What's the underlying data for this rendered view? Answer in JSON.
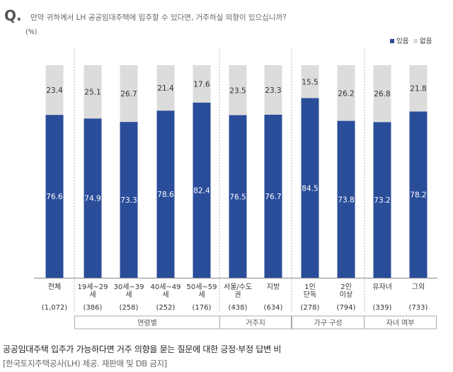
{
  "chart_data": {
    "type": "bar",
    "title_prefix": "Q.",
    "title": "만약 귀하께서 LH 공공임대주택에 입주할 수 있다면, 거주하실 의향이 있으십니까?",
    "unit": "(%)",
    "categories": [
      "전체",
      "19세~29 세",
      "30세~39 세",
      "40세~49 세",
      "50세~59 세",
      "서울/수도 권",
      "지방",
      "1인 단독",
      "2인 이상",
      "유자녀",
      "그외"
    ],
    "sample_sizes": [
      "(1,072)",
      "(386)",
      "(258)",
      "(252)",
      "(176)",
      "(438)",
      "(634)",
      "(278)",
      "(794)",
      "(339)",
      "(733)"
    ],
    "series": [
      {
        "name": "있음",
        "values": [
          76.6,
          74.9,
          73.3,
          78.6,
          82.4,
          76.5,
          76.7,
          84.5,
          73.8,
          73.2,
          78.2
        ]
      },
      {
        "name": "없음",
        "values": [
          23.4,
          25.1,
          26.7,
          21.4,
          17.6,
          23.5,
          23.3,
          15.5,
          26.2,
          26.8,
          21.8
        ]
      }
    ],
    "stacked": true,
    "ylim": [
      0,
      100
    ],
    "legend_position": "top-right",
    "groups": [
      {
        "label": "연령별",
        "start": 1,
        "end": 4
      },
      {
        "label": "거주지",
        "start": 5,
        "end": 6
      },
      {
        "label": "가구 구성",
        "start": 7,
        "end": 8
      },
      {
        "label": "자녀 여부",
        "start": 9,
        "end": 10
      }
    ]
  },
  "colors": {
    "yes": "#2a4d9a",
    "no": "#dcdcdc",
    "title_q": "#555555"
  },
  "caption": "공공임대주택 입주가 가능하다면 거주 의향을 묻는 질문에 대한 긍정·부정 답변 비",
  "credit": "[한국토지주택공사(LH) 제공. 재판매 및 DB 금지]"
}
